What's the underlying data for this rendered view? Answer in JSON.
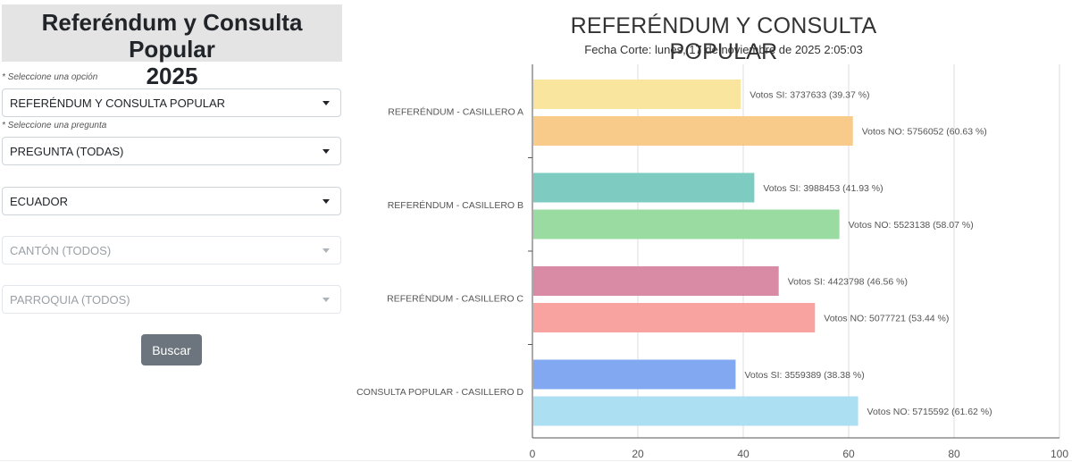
{
  "sidebar": {
    "title_line1": "Referéndum y Consulta Popular",
    "title_line2": "2025",
    "hint_option": "* Seleccione una opción",
    "select_option": "REFERÉNDUM Y CONSULTA POPULAR",
    "hint_question": "* Seleccione una pregunta",
    "select_question": "PREGUNTA (TODAS)",
    "select_province": "ECUADOR",
    "select_canton": "CANTÓN (TODOS)",
    "select_parish": "PARROQUIA (TODOS)",
    "search_label": "Buscar"
  },
  "chart_data": {
    "type": "bar",
    "orientation": "horizontal",
    "title": "REFERÉNDUM Y CONSULTA POPULAR",
    "subtitle": "Fecha Corte: lunes, 17 de noviembre de 2025 2:05:03",
    "categories": [
      "REFERÉNDUM - CASILLERO A",
      "REFERÉNDUM - CASILLERO B",
      "REFERÉNDUM - CASILLERO C",
      "CONSULTA POPULAR - CASILLERO D"
    ],
    "xlim": [
      0,
      100
    ],
    "xticks": [
      0,
      20,
      40,
      60,
      80,
      100
    ],
    "grid": true,
    "bars": [
      {
        "category": 0,
        "kind": "SI",
        "votes": 3737633,
        "percent": 39.37,
        "label": "Votos SI: 3737633 (39.37 %)",
        "color": "#f9e59e"
      },
      {
        "category": 0,
        "kind": "NO",
        "votes": 5756052,
        "percent": 60.63,
        "label": "Votos NO: 5756052 (60.63 %)",
        "color": "#f8cb8b"
      },
      {
        "category": 1,
        "kind": "SI",
        "votes": 3988453,
        "percent": 41.93,
        "label": "Votos SI: 3988453 (41.93 %)",
        "color": "#7ecbc2"
      },
      {
        "category": 1,
        "kind": "NO",
        "votes": 5523138,
        "percent": 58.07,
        "label": "Votos NO: 5523138 (58.07 %)",
        "color": "#9adba1"
      },
      {
        "category": 2,
        "kind": "SI",
        "votes": 4423798,
        "percent": 46.56,
        "label": "Votos SI: 4423798 (46.56 %)",
        "color": "#d98ba6"
      },
      {
        "category": 2,
        "kind": "NO",
        "votes": 5077721,
        "percent": 53.44,
        "label": "Votos NO: 5077721 (53.44 %)",
        "color": "#f9a3a1"
      },
      {
        "category": 3,
        "kind": "SI",
        "votes": 3559389,
        "percent": 38.38,
        "label": "Votos SI: 3559389 (38.38 %)",
        "color": "#82a8f1"
      },
      {
        "category": 3,
        "kind": "NO",
        "votes": 5715592,
        "percent": 61.62,
        "label": "Votos NO: 5715592 (61.62 %)",
        "color": "#addff2"
      }
    ]
  }
}
